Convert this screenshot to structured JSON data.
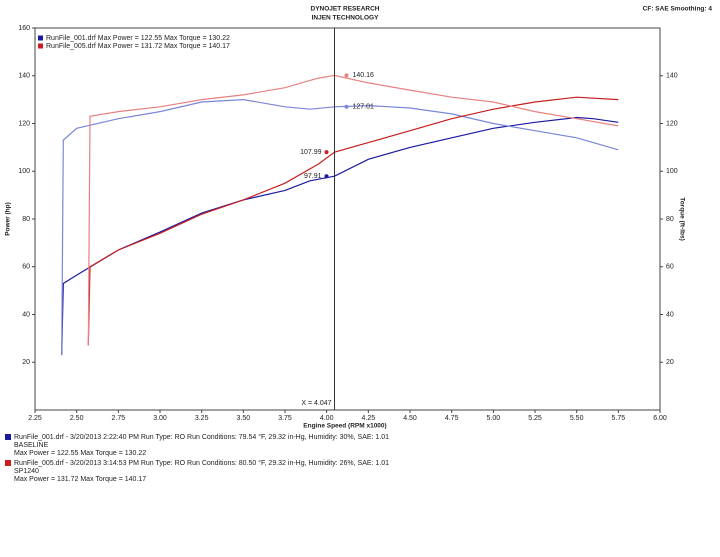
{
  "chart_data": {
    "type": "line",
    "title": "DYNOJET RESEARCH",
    "subtitle": "INJEN TECHNOLOGY",
    "corner_note": "CF: SAE  Smoothing: 4",
    "xlabel": "Engine Speed (RPM x1000)",
    "ylabel": "Power (hp)",
    "y2label": "Torque (ft-lbs)",
    "xlim": [
      2.25,
      6.0
    ],
    "xticks": [
      2.25,
      {
        "value": 2.5,
        "label": "2.50"
      },
      2.75,
      {
        "value": 3.0,
        "label": "3.00"
      },
      3.25,
      {
        "value": 3.5,
        "label": "3.50"
      },
      3.75,
      {
        "value": 4.0,
        "label": "4.00"
      },
      4.25,
      {
        "value": 4.5,
        "label": "4.50"
      },
      4.75,
      {
        "value": 5.0,
        "label": "5.00"
      },
      5.25,
      {
        "value": 5.5,
        "label": "5.50"
      },
      5.75,
      {
        "value": 6.0,
        "label": "6.00"
      }
    ],
    "ylim": [
      0,
      160
    ],
    "yticks": [
      20,
      40,
      60,
      80,
      100,
      120,
      140,
      160
    ],
    "y2lim": [
      0,
      160
    ],
    "y2ticks": [
      20,
      40,
      60,
      80,
      100,
      120,
      140
    ],
    "legend": [
      "RunFile_001.drf Max Power = 122.55   Max Torque = 130.22",
      "RunFile_005.drf Max Power = 131.72   Max Torque = 140.17"
    ],
    "series": [
      {
        "name": "RunFile_001 Power",
        "color": "#1a1aa0",
        "x": [
          2.41,
          2.42,
          2.5,
          2.75,
          3.0,
          3.25,
          3.5,
          3.75,
          3.9,
          4.047,
          4.25,
          4.5,
          4.75,
          5.0,
          5.25,
          5.5,
          5.6,
          5.75
        ],
        "values": [
          23,
          53,
          56.5,
          67,
          74.5,
          82.5,
          88,
          92,
          96,
          97.91,
          105,
          110,
          114,
          118,
          120.5,
          122.5,
          122,
          120.5
        ]
      },
      {
        "name": "RunFile_001 Torque",
        "color": "#7a86d8",
        "axis": "y2",
        "x": [
          2.41,
          2.42,
          2.5,
          2.75,
          3.0,
          3.25,
          3.5,
          3.75,
          3.9,
          4.047,
          4.25,
          4.5,
          4.75,
          5.0,
          5.25,
          5.5,
          5.75
        ],
        "values": [
          23,
          113,
          118,
          122,
          125,
          129,
          130,
          127,
          126,
          127.01,
          127.5,
          126.5,
          124,
          120,
          117,
          114,
          109
        ]
      },
      {
        "name": "RunFile_005 Power",
        "color": "#c81e1e",
        "x": [
          2.57,
          2.58,
          2.75,
          3.0,
          3.25,
          3.5,
          3.75,
          3.95,
          4.047,
          4.25,
          4.5,
          4.75,
          5.0,
          5.25,
          5.5,
          5.75
        ],
        "values": [
          27,
          60,
          67,
          74,
          82,
          88,
          95,
          103,
          107.99,
          112,
          117,
          122,
          126,
          129,
          131,
          130
        ]
      },
      {
        "name": "RunFile_005 Torque",
        "color": "#e88080",
        "axis": "y2",
        "x": [
          2.57,
          2.58,
          2.75,
          3.0,
          3.25,
          3.5,
          3.75,
          3.95,
          4.047,
          4.25,
          4.5,
          4.75,
          5.0,
          5.25,
          5.5,
          5.75
        ],
        "values": [
          27,
          123,
          125,
          127,
          130,
          132,
          135,
          139,
          140.16,
          137,
          134,
          131,
          129,
          125,
          122,
          119
        ]
      }
    ],
    "annotations": [
      {
        "label": "140.16",
        "x": 4.047,
        "y": 140.16,
        "series": 3
      },
      {
        "label": "127.01",
        "x": 4.047,
        "y": 127.01,
        "series": 1
      },
      {
        "label": "107.99",
        "x": 4.047,
        "y": 107.99,
        "series": 2
      },
      {
        "label": "97.91",
        "x": 4.047,
        "y": 97.91,
        "series": 0
      }
    ],
    "cursor": {
      "value": 4.047,
      "label": "X = 4.047"
    },
    "info": [
      {
        "color": "#1a1aa0",
        "lines": [
          "RunFile_001.drf - 3/20/2013 2:22:40 PM  Run Type: RO  Run Conditions: 79.54 °F, 29.32 in-Hg,  Humidity: 30%, SAE: 1.01",
          "BASELINE",
          "Max Power = 122.55  Max Torque = 130.22"
        ]
      },
      {
        "color": "#c81e1e",
        "lines": [
          "RunFile_005.drf - 3/20/2013 3:14:53 PM  Run Type: RO  Run Conditions: 80.50 °F, 29.32 in-Hg,  Humidity: 26%, SAE: 1.01",
          "SP1240",
          "Max Power = 131.72  Max Torque = 140.17"
        ]
      }
    ]
  }
}
